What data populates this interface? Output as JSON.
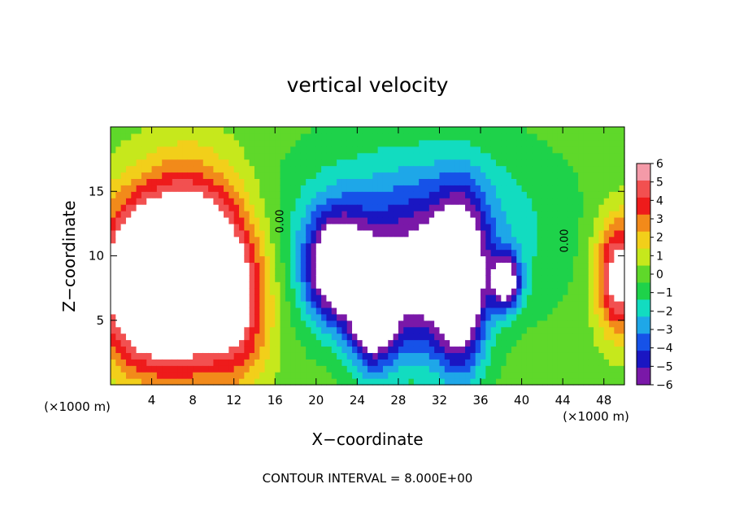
{
  "chart_data": {
    "type": "heatmap",
    "title": "vertical velocity",
    "xlabel": "X−coordinate",
    "ylabel": "Z−coordinate",
    "x_unit_left": "(×1000 m)",
    "x_unit_right": "(×1000 m)",
    "xlim": [
      0,
      50
    ],
    "ylim": [
      0,
      20
    ],
    "x_ticks": [
      "4",
      "8",
      "12",
      "16",
      "20",
      "24",
      "28",
      "32",
      "36",
      "40",
      "44",
      "48"
    ],
    "x_tick_values": [
      4,
      8,
      12,
      16,
      20,
      24,
      28,
      32,
      36,
      40,
      44,
      48
    ],
    "y_ticks": [
      "5",
      "10",
      "15"
    ],
    "y_tick_values": [
      5,
      10,
      15
    ],
    "colorbar": {
      "labels": [
        "6",
        "5",
        "4",
        "3",
        "2",
        "1",
        "0",
        "−1",
        "−2",
        "−3",
        "−4",
        "−5",
        "−6"
      ],
      "values": [
        6,
        5,
        4,
        3,
        2,
        1,
        0,
        -1,
        -2,
        -3,
        -4,
        -5,
        -6
      ],
      "colors": [
        "#f49aa8",
        "#f25050",
        "#ee1b1b",
        "#f28a1a",
        "#f2cf1a",
        "#c6e81c",
        "#5fd82a",
        "#1ed24a",
        "#12dcc0",
        "#1ea7e8",
        "#1652e8",
        "#1a16c2",
        "#7a18a8"
      ]
    },
    "zero_contour_labels": [
      "0.00",
      "0.00"
    ],
    "zero_contour_label_x": [
      16.8,
      44.5
    ],
    "features": [
      {
        "kind": "updraft",
        "x": 3.0,
        "z": 8.0,
        "sx": 3.2,
        "sz": 4.5,
        "amp": 9.0
      },
      {
        "kind": "updraft",
        "x": 8.0,
        "z": 9.0,
        "sx": 3.2,
        "sz": 5.0,
        "amp": 10.0
      },
      {
        "kind": "updraft",
        "x": 12.5,
        "z": 6.5,
        "sx": 2.3,
        "sz": 4.5,
        "amp": 4.5
      },
      {
        "kind": "updraft",
        "x": 49.5,
        "z": 8.5,
        "sx": 1.6,
        "sz": 3.2,
        "amp": 7.0
      },
      {
        "kind": "downdraft",
        "x": 22.0,
        "z": 9.0,
        "sx": 2.2,
        "sz": 3.0,
        "amp": -8.0
      },
      {
        "kind": "downdraft",
        "x": 25.5,
        "z": 5.5,
        "sx": 1.6,
        "sz": 3.0,
        "amp": -8.0
      },
      {
        "kind": "downdraft",
        "x": 34.0,
        "z": 7.5,
        "sx": 1.8,
        "sz": 4.5,
        "amp": -9.0
      },
      {
        "kind": "downdraft",
        "x": 38.5,
        "z": 8.0,
        "sx": 1.0,
        "sz": 1.5,
        "amp": -7.0
      },
      {
        "kind": "downdraft",
        "x": 29.5,
        "z": 7.0,
        "sx": 2.4,
        "sz": 4.0,
        "amp": -4.5
      },
      {
        "kind": "downdraft",
        "x": 30.0,
        "z": 12.0,
        "sx": 8.0,
        "sz": 4.5,
        "amp": -4.0
      }
    ],
    "footer": "CONTOUR INTERVAL = 8.000E+00"
  }
}
